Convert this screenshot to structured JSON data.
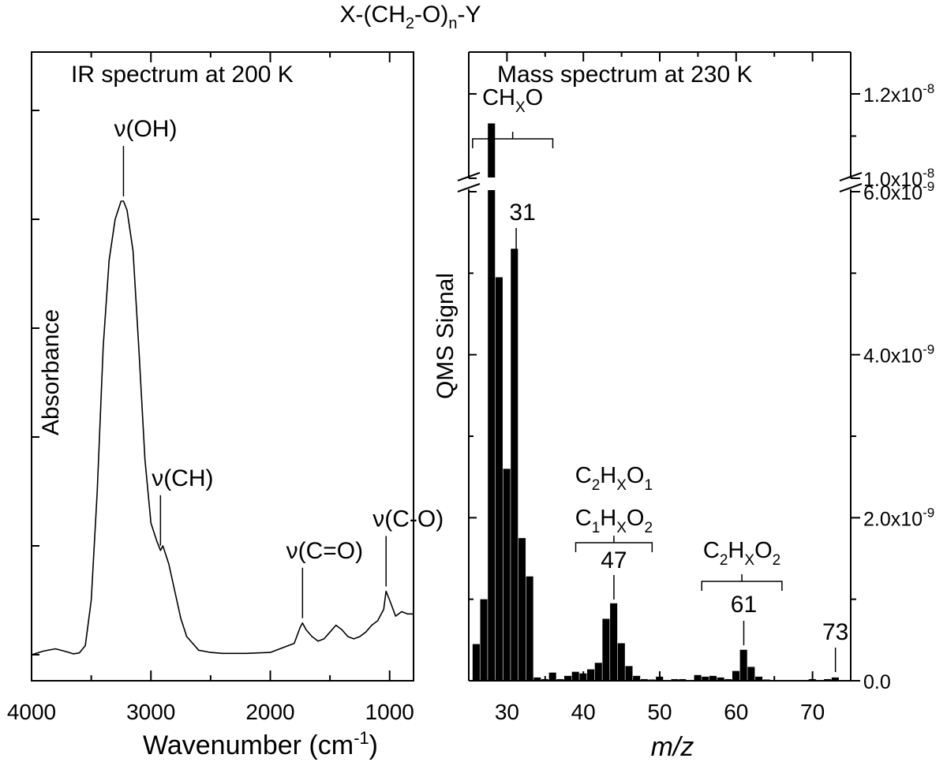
{
  "figure_title": {
    "pre": "X-(CH",
    "s1": "2",
    "mid": "-O)",
    "s2": "n",
    "post": "-Y"
  },
  "chart_data": [
    {
      "type": "line",
      "title": "IR spectrum at 200 K",
      "xlabel": {
        "pre": "Wavenumber (cm",
        "sup": "-1",
        "post": ")"
      },
      "ylabel": "Absorbance",
      "xlim": [
        4000,
        800
      ],
      "x_reversed": true,
      "y_tick_labels": false,
      "x_ticks": [
        4000,
        3000,
        2000,
        1000
      ],
      "grid": false,
      "series": [
        {
          "x": [
            4000,
            3900,
            3800,
            3700,
            3650,
            3600,
            3550,
            3500,
            3450,
            3400,
            3350,
            3300,
            3250,
            3230,
            3200,
            3150,
            3100,
            3050,
            3000,
            2950,
            2920,
            2900,
            2850,
            2800,
            2750,
            2700,
            2600,
            2500,
            2400,
            2300,
            2200,
            2100,
            2000,
            1950,
            1900,
            1850,
            1800,
            1750,
            1730,
            1700,
            1650,
            1600,
            1550,
            1500,
            1450,
            1400,
            1350,
            1300,
            1250,
            1200,
            1150,
            1100,
            1050,
            1030,
            1000,
            950,
            900,
            850,
            800
          ],
          "y": [
            0.0,
            0.008,
            0.013,
            0.006,
            0.002,
            0.004,
            0.02,
            0.12,
            0.36,
            0.68,
            0.87,
            0.96,
            1.0,
            1.0,
            0.98,
            0.89,
            0.67,
            0.43,
            0.29,
            0.25,
            0.23,
            0.24,
            0.2,
            0.14,
            0.08,
            0.04,
            0.01,
            0.005,
            0.003,
            0.003,
            0.003,
            0.004,
            0.005,
            0.01,
            0.015,
            0.02,
            0.025,
            0.06,
            0.07,
            0.055,
            0.04,
            0.03,
            0.035,
            0.05,
            0.065,
            0.055,
            0.04,
            0.035,
            0.04,
            0.05,
            0.065,
            0.075,
            0.1,
            0.14,
            0.12,
            0.085,
            0.095,
            0.09,
            0.09
          ]
        }
      ],
      "annotations": [
        {
          "label": "ν(OH)",
          "x": 3230
        },
        {
          "label": "ν(CH)",
          "x": 2920
        },
        {
          "label": "ν(C=O)",
          "x": 1730
        },
        {
          "label": "ν(C-O)",
          "x": 1030
        }
      ]
    },
    {
      "type": "bar",
      "title": "Mass  spectrum at 230 K",
      "xlabel": "m/z",
      "ylabel": "QMS Signal",
      "xlim": [
        25,
        75
      ],
      "x_ticks": [
        30,
        40,
        50,
        60,
        70
      ],
      "y_axis": "broken",
      "y_lower_range": [
        0,
        6e-09
      ],
      "y_upper_range": [
        1e-08,
        1.25e-08
      ],
      "y_tick_labels": [
        {
          "mant": "0.0",
          "value": 0
        },
        {
          "mant": "2.0x10",
          "exp": "-9",
          "value": 2e-09
        },
        {
          "mant": "4.0x10",
          "exp": "-9",
          "value": 4e-09
        },
        {
          "mant": "6.0x10",
          "exp": "-9",
          "value": 6e-09
        },
        {
          "mant": "1.0x10",
          "exp": "-8",
          "value": 1e-08
        },
        {
          "mant": "1.2x10",
          "exp": "-8",
          "value": 1.2e-08
        }
      ],
      "grid": false,
      "mz": [
        26,
        27,
        28,
        29,
        30,
        31,
        32,
        33,
        34,
        35,
        36,
        37,
        38,
        39,
        40,
        41,
        42,
        43,
        44,
        45,
        46,
        47,
        48,
        49,
        50,
        51,
        52,
        53,
        54,
        55,
        56,
        57,
        58,
        59,
        60,
        61,
        62,
        63,
        64,
        65,
        66,
        67,
        68,
        69,
        70,
        71,
        72,
        73
      ],
      "values": [
        4.5e-10,
        1e-09,
        1.13e-08,
        4.95e-09,
        2.6e-09,
        5.3e-09,
        1.75e-09,
        1.28e-09,
        4e-11,
        2e-11,
        1e-10,
        2e-11,
        6e-11,
        1.1e-10,
        9e-11,
        1.4e-10,
        2.2e-10,
        7.6e-10,
        9.5e-10,
        4.6e-10,
        1.8e-10,
        6e-11,
        2e-11,
        1.5e-11,
        5e-11,
        1e-11,
        2e-11,
        2e-11,
        1e-11,
        7e-11,
        5e-11,
        6e-11,
        4e-11,
        2e-11,
        1.2e-10,
        3.8e-10,
        1.7e-10,
        5e-11,
        1.5e-11,
        1e-11,
        1e-11,
        1e-11,
        1e-11,
        1e-11,
        2e-11,
        1e-11,
        2e-11,
        4e-11
      ],
      "groups": [
        {
          "lines": [
            {
              "b": "CH",
              "s": "X",
              "a": "O"
            }
          ],
          "from": 25.5,
          "to": 36
        },
        {
          "lines": [
            {
              "b": "C",
              "s": "2",
              "c": "H",
              "s2": "X",
              "d": "O",
              "s3": "1"
            },
            {
              "b": "C",
              "s": "1",
              "c": "H",
              "s2": "X",
              "d": "O",
              "s3": "2"
            }
          ],
          "from": 39,
          "to": 49
        },
        {
          "lines": [
            {
              "b": "C",
              "s": "2",
              "c": "H",
              "s2": "X",
              "d": "O",
              "s3": "2"
            }
          ],
          "from": 55.5,
          "to": 66
        }
      ],
      "peak_labels": [
        {
          "label": "31",
          "x": 31
        },
        {
          "label": "47",
          "x": 44
        },
        {
          "label": "61",
          "x": 61
        },
        {
          "label": "73",
          "x": 73
        }
      ]
    }
  ]
}
